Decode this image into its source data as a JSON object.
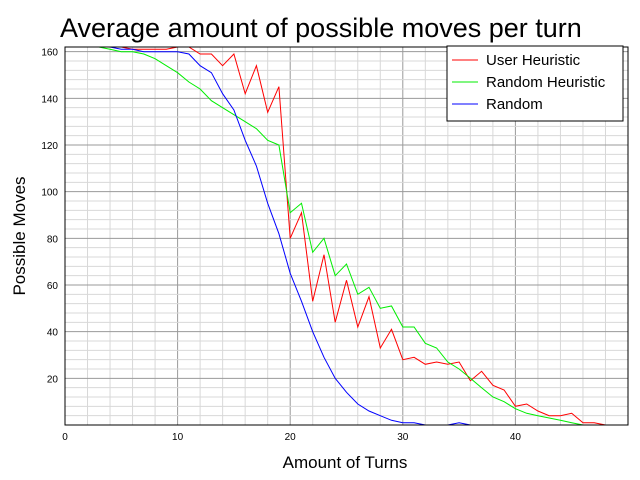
{
  "chart_data": {
    "type": "line",
    "title": "Average amount of possible moves per turn",
    "xlabel": "Amount of Turns",
    "ylabel": "Possible Moves",
    "xlim": [
      0,
      50
    ],
    "ylim": [
      0,
      162
    ],
    "x_ticks": [
      "0",
      "10",
      "20",
      "30",
      "40"
    ],
    "y_ticks": [
      "20",
      "40",
      "60",
      "80",
      "100",
      "120",
      "140",
      "160"
    ],
    "grid": true,
    "legend_position": "top-right",
    "series": [
      {
        "name": "User Heuristic",
        "color": "#ff0000",
        "x": [
          0,
          1,
          2,
          3,
          4,
          5,
          6,
          7,
          8,
          9,
          10,
          11,
          12,
          13,
          14,
          15,
          16,
          17,
          18,
          19,
          20,
          21,
          22,
          23,
          24,
          25,
          26,
          27,
          28,
          29,
          30,
          31,
          32,
          33,
          34,
          35,
          36,
          37,
          38,
          39,
          40,
          41,
          42,
          43,
          44,
          45,
          46,
          47,
          48
        ],
        "values": [
          162,
          162,
          162,
          162,
          162,
          162,
          161,
          161,
          161,
          161,
          162,
          162,
          159,
          159,
          154,
          159,
          142,
          154,
          134,
          145,
          80,
          91,
          53,
          73,
          44,
          62,
          42,
          55,
          33,
          41,
          28,
          29,
          26,
          27,
          26,
          27,
          19,
          23,
          17,
          15,
          8,
          9,
          6,
          4,
          4,
          5,
          1,
          1,
          0
        ]
      },
      {
        "name": "Random Heuristic",
        "color": "#00ee00",
        "x": [
          0,
          1,
          2,
          3,
          4,
          5,
          6,
          7,
          8,
          9,
          10,
          11,
          12,
          13,
          14,
          15,
          16,
          17,
          18,
          19,
          20,
          21,
          22,
          23,
          24,
          25,
          26,
          27,
          28,
          29,
          30,
          31,
          32,
          33,
          34,
          35,
          36,
          37,
          38,
          39,
          40,
          41,
          42,
          43,
          44,
          45,
          46,
          47
        ],
        "values": [
          162,
          162,
          162,
          162,
          161,
          160,
          160,
          159,
          157,
          154,
          151,
          147,
          144,
          139,
          136,
          133,
          130,
          127,
          122,
          120,
          91,
          95,
          74,
          80,
          64,
          69,
          56,
          59,
          50,
          51,
          42,
          42,
          35,
          33,
          27,
          24,
          20,
          16,
          12,
          10,
          7,
          5,
          4,
          3,
          2,
          1,
          0,
          0
        ]
      },
      {
        "name": "Random",
        "color": "#0000ff",
        "x": [
          0,
          1,
          2,
          3,
          4,
          5,
          6,
          7,
          8,
          9,
          10,
          11,
          12,
          13,
          14,
          15,
          16,
          17,
          18,
          19,
          20,
          21,
          22,
          23,
          24,
          25,
          26,
          27,
          28,
          29,
          30,
          31,
          32,
          33,
          34,
          35,
          36,
          37
        ],
        "values": [
          162,
          162,
          162,
          162,
          162,
          161,
          161,
          160,
          160,
          160,
          160,
          159,
          154,
          151,
          142,
          135,
          122,
          111,
          95,
          82,
          65,
          53,
          40,
          29,
          20,
          14,
          9,
          6,
          4,
          2,
          1,
          1,
          0,
          0,
          0,
          1,
          0,
          0
        ]
      }
    ]
  }
}
